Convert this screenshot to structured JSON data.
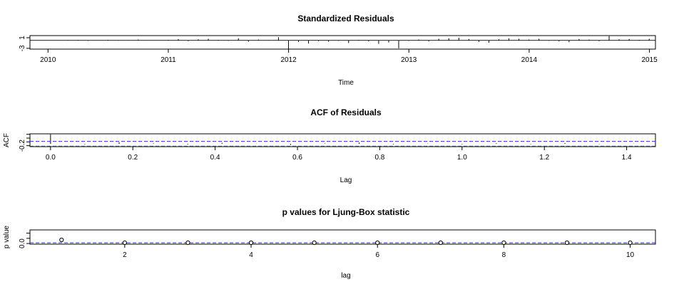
{
  "chart_data": [
    {
      "type": "bar",
      "title": "Standardized Residuals",
      "xlabel": "Time",
      "ylabel": "",
      "xlim": [
        2009.85,
        2015.05
      ],
      "ylim": [
        -3.3,
        1.8
      ],
      "x_ticks": [
        "2010",
        "2011",
        "2012",
        "2013",
        "2014",
        "2015"
      ],
      "y_ticks": [
        "-3",
        "1"
      ],
      "start": 2010.0,
      "step": 0.0833,
      "values": [
        0.05,
        -0.1,
        0.1,
        0.15,
        -0.2,
        0.05,
        0.2,
        -0.15,
        0.1,
        0.3,
        -0.1,
        0.05,
        0.2,
        0.5,
        -0.3,
        0.4,
        0.6,
        0.2,
        -0.2,
        0.8,
        -0.5,
        0.3,
        0.1,
        1.2,
        -3.2,
        -0.6,
        -1.2,
        -0.3,
        -0.5,
        -0.2,
        -1.0,
        0.2,
        -0.4,
        -1.3,
        -0.8,
        -3.0,
        -0.2,
        0.3,
        -0.4,
        0.6,
        0.8,
        1.0,
        0.5,
        -0.6,
        -0.9,
        0.4,
        0.8,
        0.6,
        0.3,
        0.6,
        -0.2,
        -0.4,
        -0.7,
        0.5,
        0.3,
        -0.3,
        1.6,
        0.4,
        0.5,
        0.2,
        0.6
      ]
    },
    {
      "type": "bar",
      "title": "ACF of Residuals",
      "xlabel": "Lag",
      "ylabel": "ACF",
      "xlim": [
        -0.05,
        1.47
      ],
      "ylim": [
        -0.3,
        1.05
      ],
      "x_ticks": [
        "0.0",
        "0.2",
        "0.4",
        "0.6",
        "0.8",
        "1.0",
        "1.2",
        "1.4"
      ],
      "y_ticks": [
        "-0.2"
      ],
      "x": [
        0.0,
        0.0833,
        0.1667,
        0.25,
        0.3333,
        0.4167,
        0.5,
        0.5833,
        0.6667,
        0.75,
        0.8333,
        0.9167,
        1.0,
        1.0833,
        1.1667,
        1.25,
        1.3333,
        1.4167
      ],
      "values": [
        1.0,
        -0.05,
        0.15,
        0.05,
        -0.08,
        0.1,
        0.02,
        -0.12,
        0.04,
        0.13,
        -0.06,
        0.03,
        -0.05,
        0.06,
        -0.04,
        0.08,
        -0.03,
        0.02
      ],
      "confidence_band": [
        -0.25,
        0.25
      ]
    },
    {
      "type": "scatter",
      "title": "p values for Ljung-Box statistic",
      "xlabel": "lag",
      "ylabel": "p value",
      "xlim": [
        0.5,
        10.4
      ],
      "ylim": [
        -0.05,
        1.05
      ],
      "x_ticks": [
        "2",
        "4",
        "6",
        "8",
        "10"
      ],
      "y_ticks": [
        "0.0"
      ],
      "x": [
        1,
        2,
        3,
        4,
        5,
        6,
        7,
        8,
        9,
        10
      ],
      "values": [
        0.28,
        0.01,
        0.01,
        0.005,
        0.005,
        0.005,
        0.005,
        0.005,
        0.01,
        0.005
      ],
      "reference_line": 0.05
    }
  ]
}
